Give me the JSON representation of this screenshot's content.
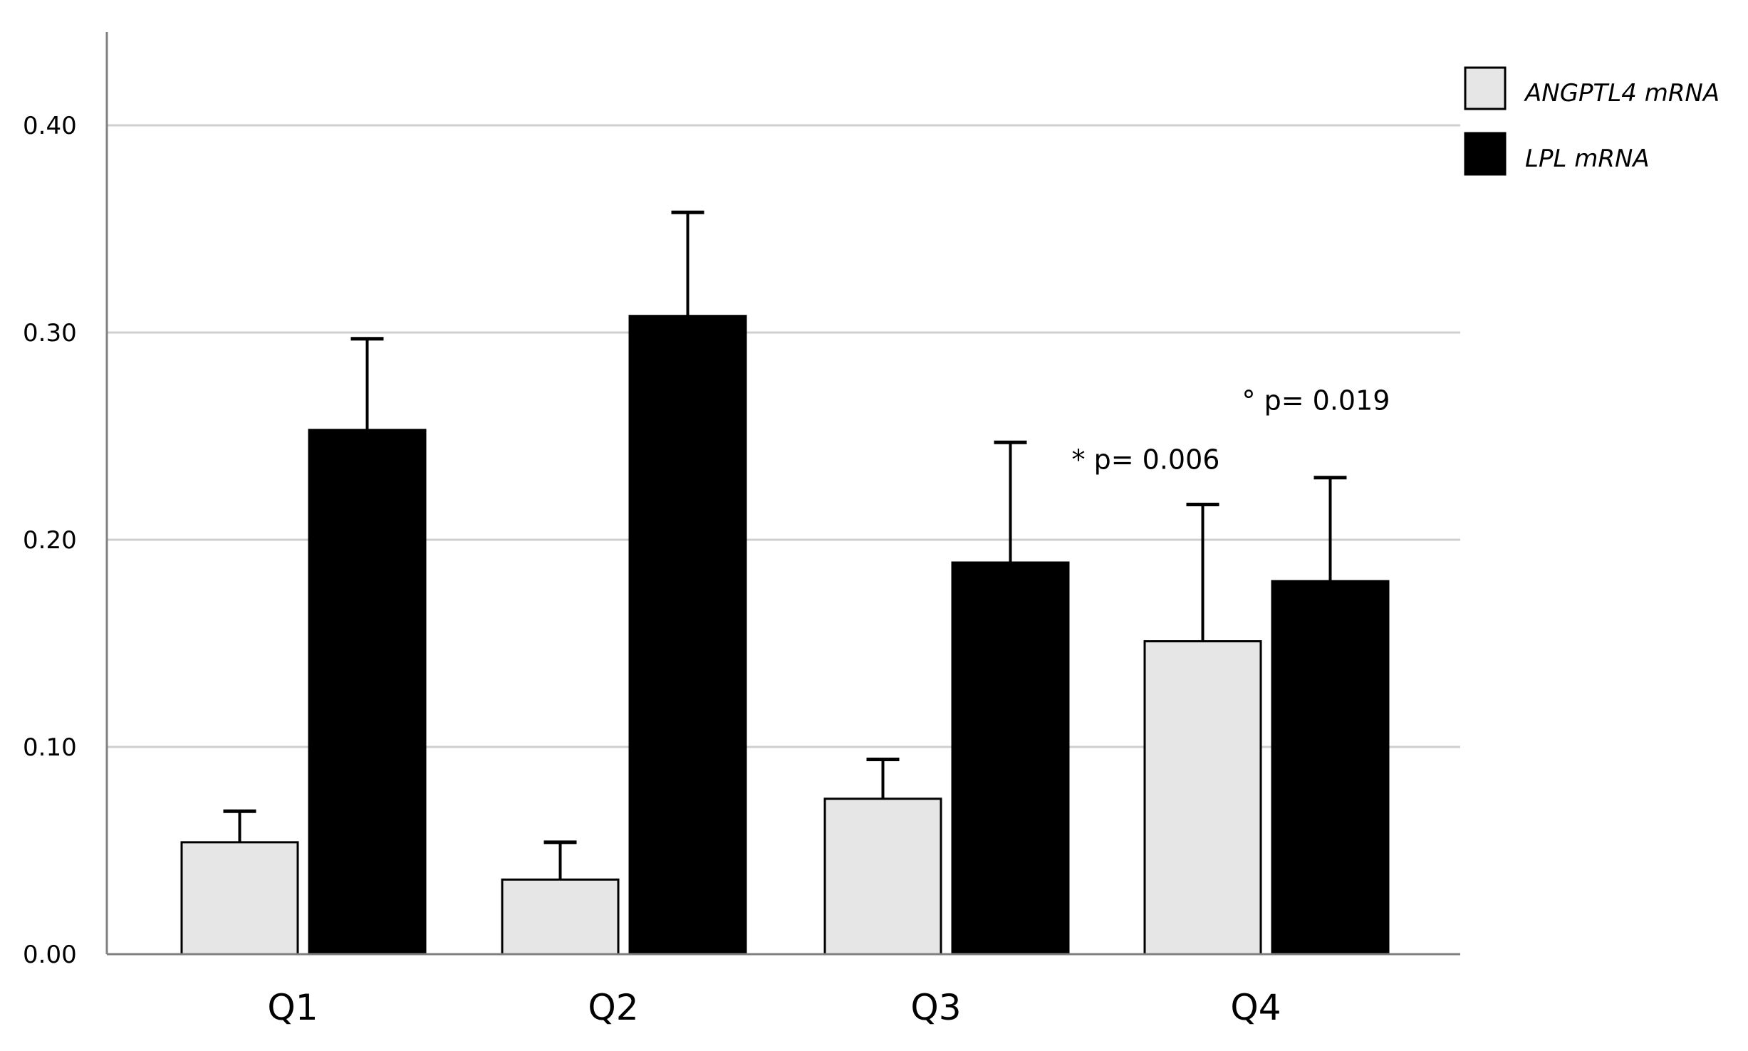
{
  "chart_data": {
    "type": "bar",
    "categories": [
      "Q1",
      "Q2",
      "Q3",
      "Q4"
    ],
    "series": [
      {
        "name": "ANGPTL4 mRNA",
        "values": [
          0.054,
          0.036,
          0.075,
          0.151
        ],
        "error": [
          0.015,
          0.018,
          0.019,
          0.066
        ],
        "color": "#e6e6e6"
      },
      {
        "name": "LPL mRNA",
        "values": [
          0.253,
          0.308,
          0.189,
          0.18
        ],
        "error": [
          0.044,
          0.05,
          0.058,
          0.05
        ],
        "color": "#000000"
      }
    ],
    "yticks": [
      "0.00",
      "0.10",
      "0.20",
      "0.30",
      "0.40"
    ],
    "ylim": [
      0,
      0.44
    ],
    "grid": true,
    "legend_position": "top-right",
    "annotations": [
      {
        "text": "* p= 0.006",
        "category": "Q4",
        "series": 0
      },
      {
        "text": "° p= 0.019",
        "category": "Q4",
        "series": 1
      }
    ],
    "title": "",
    "xlabel": "",
    "ylabel": ""
  }
}
